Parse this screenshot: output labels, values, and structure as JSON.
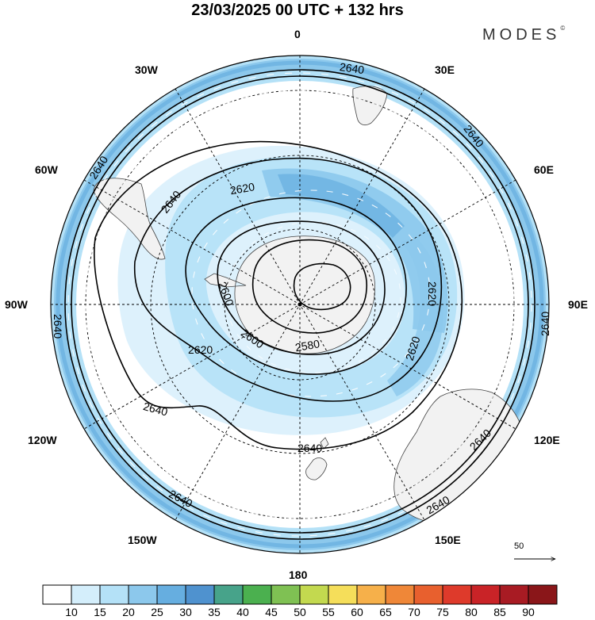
{
  "header": {
    "title": "23/03/2025  00 UTC  + 132 hrs",
    "logo": "MODES",
    "logo_mark": "©"
  },
  "map": {
    "projection": "south-polar-stereographic",
    "longitude_labels": {
      "top": "0",
      "top_right": "30E",
      "right_upper": "60E",
      "right": "90E",
      "right_lower": "120E",
      "bottom_right": "150E",
      "bottom": "180",
      "bottom_left": "150W",
      "left_lower": "120W",
      "left": "90W",
      "left_upper": "60W",
      "top_left": "30W"
    },
    "contour_labels": [
      "2640",
      "2640",
      "2640",
      "2640",
      "2640",
      "2640",
      "2640",
      "2640",
      "2640",
      "2620",
      "2620",
      "2620",
      "2620",
      "2600",
      "2600",
      "2580",
      "2640",
      "2640"
    ],
    "reference_vector": "50",
    "colors": {
      "land": "#f2f2f2",
      "ocean": "#ffffff",
      "wind_15": "#c8eaf8",
      "wind_20": "#a9d8f1",
      "wind_25": "#84bfe6",
      "wind_30": "#62a3d9",
      "contour": "#000000"
    }
  },
  "colorbar": {
    "ticks": [
      "10",
      "15",
      "20",
      "25",
      "30",
      "35",
      "40",
      "45",
      "50",
      "55",
      "60",
      "65",
      "70",
      "75",
      "80",
      "85",
      "90"
    ],
    "colors": [
      "#ffffff",
      "#d4eefb",
      "#b4e1f7",
      "#8cc8ec",
      "#66aee0",
      "#4f92cf",
      "#47a38a",
      "#4bb04f",
      "#7fc153",
      "#c3d94f",
      "#f5de5a",
      "#f6b04a",
      "#ef8738",
      "#e8602e",
      "#de3a2b",
      "#c92327",
      "#a81b23",
      "#8a1619"
    ]
  }
}
